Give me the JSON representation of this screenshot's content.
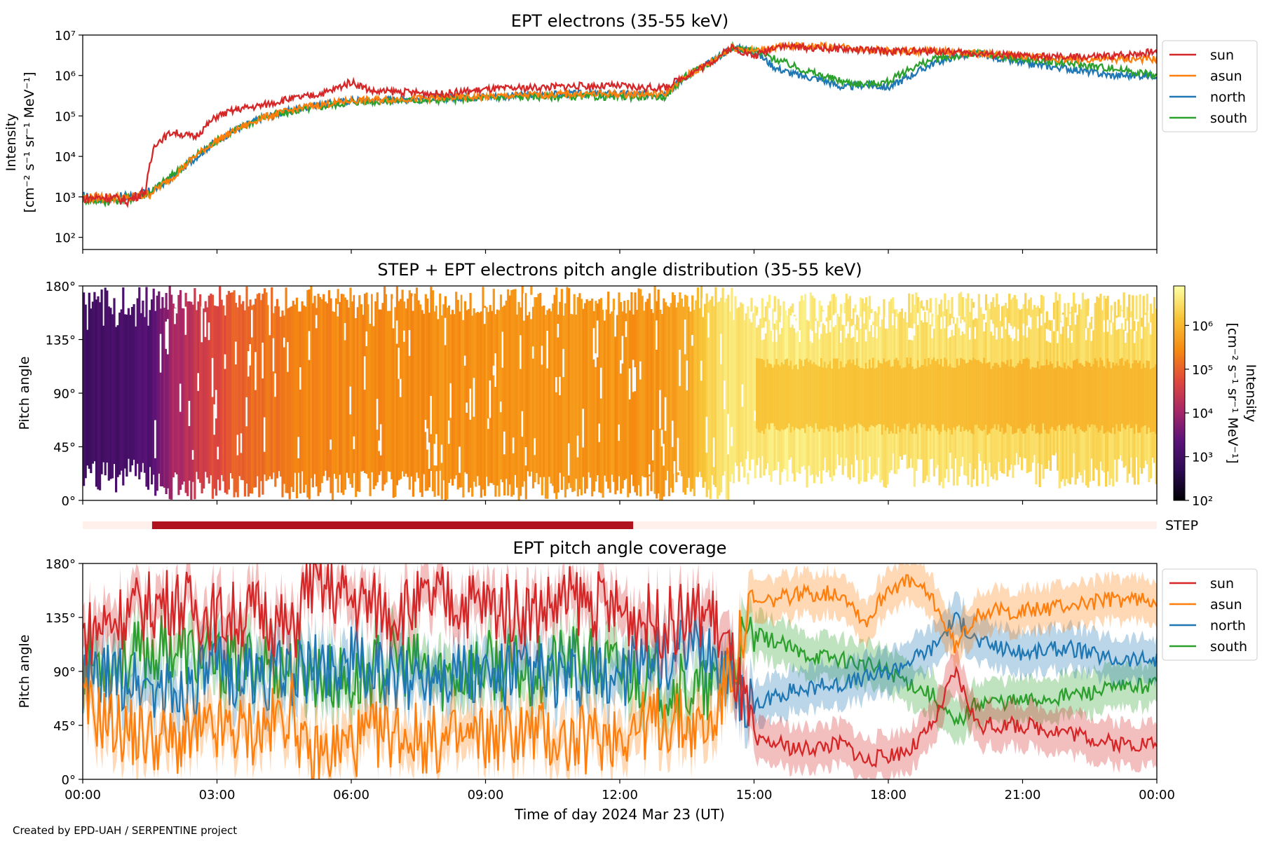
{
  "credit": "Created by EPD-UAH / SERPENTINE project",
  "colors": {
    "sun": "#d62728",
    "asun": "#ff7f0e",
    "north": "#1f77b4",
    "south": "#2ca02c"
  },
  "chart_data": [
    {
      "type": "line",
      "title": "EPT electrons (35-55 keV)",
      "ylabel": [
        "Intensity",
        "[cm⁻² s⁻¹ sr⁻¹ MeV⁻¹]"
      ],
      "yscale": "log",
      "ylim": [
        50,
        10000000
      ],
      "yticks": [
        "10²",
        "10³",
        "10⁴",
        "10⁵",
        "10⁶",
        "10⁷"
      ],
      "xlim_hours": [
        0,
        24
      ],
      "legend": "outside-right",
      "series": [
        {
          "name": "sun",
          "x": [
            0,
            0.5,
            1,
            1.4,
            1.6,
            2,
            2.5,
            3,
            3.5,
            4,
            4.5,
            5,
            5.5,
            6,
            6.5,
            7,
            8,
            9,
            10,
            11,
            12,
            12.5,
            13,
            13.5,
            14,
            14.5,
            15,
            15.5,
            16,
            17,
            18,
            19,
            20,
            21,
            22,
            23,
            24
          ],
          "y": [
            900,
            1000,
            800,
            1400,
            20000,
            40000,
            30000,
            100000,
            150000,
            180000,
            250000,
            300000,
            400000,
            700000,
            400000,
            400000,
            350000,
            450000,
            500000,
            550000,
            550000,
            500000,
            500000,
            1000000,
            2000000,
            5000000,
            3000000,
            5500000,
            5000000,
            4500000,
            4000000,
            4000000,
            3500000,
            3000000,
            2800000,
            3000000,
            4000000
          ]
        },
        {
          "name": "asun",
          "x": [
            0,
            0.5,
            1,
            1.5,
            2,
            2.5,
            3,
            3.5,
            4,
            5,
            6,
            7,
            8,
            9,
            10,
            11,
            12,
            13,
            13.5,
            14,
            14.5,
            15,
            15.5,
            16,
            17,
            18,
            19,
            20,
            21,
            22,
            23,
            24
          ],
          "y": [
            900,
            1000,
            900,
            1200,
            3000,
            10000,
            25000,
            50000,
            90000,
            170000,
            240000,
            260000,
            280000,
            300000,
            330000,
            350000,
            350000,
            350000,
            1000000,
            2000000,
            5000000,
            4000000,
            5000000,
            5500000,
            5000000,
            4000000,
            4000000,
            3500000,
            3000000,
            2500000,
            2500000,
            2500000
          ]
        },
        {
          "name": "north",
          "x": [
            0,
            0.5,
            1,
            1.5,
            2,
            2.5,
            3,
            3.5,
            4,
            5,
            6,
            7,
            8,
            9,
            10,
            11,
            12,
            13,
            13.5,
            14,
            14.5,
            15,
            15.5,
            16,
            16.5,
            17,
            17.5,
            18,
            18.5,
            19,
            19.5,
            20,
            21,
            22,
            23,
            24
          ],
          "y": [
            1000,
            900,
            1000,
            1300,
            3000,
            9000,
            25000,
            50000,
            90000,
            170000,
            240000,
            260000,
            280000,
            300000,
            330000,
            350000,
            350000,
            350000,
            1000000,
            2000000,
            5000000,
            4000000,
            1500000,
            1000000,
            800000,
            500000,
            600000,
            500000,
            1000000,
            2000000,
            3000000,
            3500000,
            2000000,
            1500000,
            1000000,
            1000000
          ]
        },
        {
          "name": "south",
          "x": [
            0,
            0.5,
            1,
            1.5,
            2,
            2.5,
            3,
            3.5,
            4,
            5,
            6,
            7,
            8,
            9,
            10,
            11,
            12,
            13,
            13.5,
            14,
            14.5,
            15,
            15.5,
            16,
            16.5,
            17,
            17.5,
            18,
            18.5,
            19,
            19.5,
            20,
            21,
            22,
            23,
            24
          ],
          "y": [
            900,
            800,
            900,
            1300,
            3500,
            10000,
            25000,
            50000,
            90000,
            150000,
            220000,
            240000,
            250000,
            280000,
            300000,
            300000,
            300000,
            300000,
            1000000,
            2000000,
            5000000,
            4000000,
            2500000,
            1500000,
            1000000,
            700000,
            600000,
            700000,
            1500000,
            2500000,
            3000000,
            3500000,
            2500000,
            2000000,
            1500000,
            1000000
          ]
        }
      ]
    },
    {
      "type": "heatmap",
      "title": "STEP + EPT electrons pitch angle distribution (35-55 keV)",
      "ylabel": "Pitch angle",
      "ylim": [
        0,
        180
      ],
      "yticks": [
        "0°",
        "45°",
        "90°",
        "135°",
        "180°"
      ],
      "colorbar": {
        "label": "Intensity",
        "sublabel": "[cm⁻² s⁻¹ sr⁻¹ MeV⁻¹]",
        "scale": "log",
        "range": [
          100,
          8000000
        ],
        "ticks": [
          "10²",
          "10³",
          "10⁴",
          "10⁵",
          "10⁶"
        ]
      },
      "hours": [
        0,
        0.75,
        1.5,
        2,
        2.5,
        3,
        4,
        5,
        6,
        7,
        8,
        9,
        10,
        11,
        12,
        13,
        13.5,
        14,
        14.5,
        15,
        16,
        17,
        18,
        19,
        20,
        21,
        22,
        23,
        24
      ],
      "intensity": [
        1000,
        1200,
        2000,
        12000,
        25000,
        60000,
        150000,
        250000,
        280000,
        300000,
        320000,
        340000,
        350000,
        360000,
        370000,
        380000,
        700000,
        2000000,
        4000000,
        4000000,
        4500000,
        4000000,
        3500000,
        3500000,
        3000000,
        2500000,
        2500000,
        2800000,
        3000000
      ]
    },
    {
      "type": "bar",
      "label": "STEP",
      "coverage_hours": [
        1.55,
        12.3
      ]
    },
    {
      "type": "line",
      "title": "EPT pitch angle coverage",
      "ylabel": "Pitch angle",
      "xlabel": "Time of day 2024 Mar 23 (UT)",
      "ylim": [
        0,
        180
      ],
      "yticks": [
        "0°",
        "45°",
        "90°",
        "135°",
        "180°"
      ],
      "xticks": [
        "00:00",
        "03:00",
        "06:00",
        "09:00",
        "12:00",
        "15:00",
        "18:00",
        "21:00",
        "00:00"
      ],
      "legend": "outside-right",
      "series": [
        {
          "name": "sun",
          "x": [
            0,
            1,
            2,
            3,
            4,
            4.7,
            5,
            6,
            7,
            8,
            9,
            10,
            11,
            12,
            13,
            14,
            14.5,
            15,
            15.5,
            16,
            17,
            17.5,
            18,
            18.5,
            19,
            19.5,
            20,
            21,
            22,
            23,
            24
          ],
          "y": [
            120,
            140,
            150,
            135,
            140,
            120,
            165,
            150,
            140,
            150,
            145,
            140,
            150,
            140,
            130,
            140,
            100,
            30,
            30,
            25,
            30,
            15,
            20,
            25,
            45,
            90,
            45,
            45,
            40,
            30,
            30
          ]
        },
        {
          "name": "asun",
          "x": [
            0,
            1,
            2,
            3,
            4,
            4.7,
            5,
            6,
            7,
            8,
            9,
            10,
            11,
            12,
            13,
            14,
            15,
            15.5,
            16,
            17,
            17.5,
            18,
            18.5,
            19,
            19.5,
            20,
            21,
            22,
            23,
            24
          ],
          "y": [
            60,
            40,
            30,
            40,
            40,
            60,
            15,
            30,
            40,
            30,
            35,
            40,
            30,
            40,
            50,
            40,
            145,
            150,
            155,
            155,
            130,
            160,
            165,
            150,
            110,
            140,
            140,
            145,
            150,
            150
          ]
        },
        {
          "name": "north",
          "x": [
            0,
            1,
            2,
            3,
            4,
            4.7,
            5,
            6,
            7,
            8,
            9,
            10,
            11,
            12,
            13,
            14,
            15,
            15.5,
            16,
            17,
            17.5,
            18,
            18.5,
            19,
            19.5,
            20,
            21,
            22,
            23,
            24
          ],
          "y": [
            80,
            85,
            70,
            90,
            85,
            90,
            90,
            100,
            80,
            95,
            85,
            90,
            80,
            90,
            100,
            110,
            60,
            70,
            75,
            80,
            85,
            90,
            100,
            110,
            135,
            115,
            105,
            110,
            100,
            100
          ]
        },
        {
          "name": "south",
          "x": [
            0,
            1,
            2,
            3,
            4,
            4.7,
            5,
            6,
            7,
            8,
            9,
            10,
            11,
            12,
            13,
            14,
            15,
            15.5,
            16,
            17,
            17.5,
            18,
            18.5,
            19,
            19.5,
            20,
            21,
            22,
            23,
            24
          ],
          "y": [
            100,
            100,
            110,
            95,
            100,
            90,
            90,
            80,
            100,
            85,
            95,
            90,
            100,
            90,
            80,
            70,
            120,
            115,
            105,
            100,
            95,
            90,
            80,
            70,
            45,
            65,
            65,
            70,
            75,
            80
          ]
        }
      ]
    }
  ]
}
